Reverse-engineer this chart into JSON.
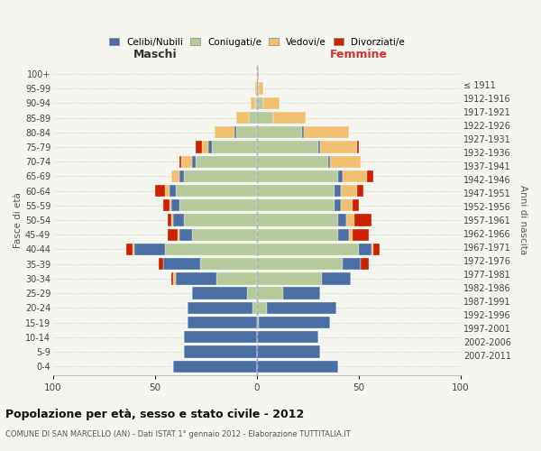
{
  "age_groups": [
    "0-4",
    "5-9",
    "10-14",
    "15-19",
    "20-24",
    "25-29",
    "30-34",
    "35-39",
    "40-44",
    "45-49",
    "50-54",
    "55-59",
    "60-64",
    "65-69",
    "70-74",
    "75-79",
    "80-84",
    "85-89",
    "90-94",
    "95-99",
    "100+"
  ],
  "birth_years": [
    "2007-2011",
    "2002-2006",
    "1997-2001",
    "1992-1996",
    "1987-1991",
    "1982-1986",
    "1977-1981",
    "1972-1976",
    "1967-1971",
    "1962-1966",
    "1957-1961",
    "1952-1956",
    "1947-1951",
    "1942-1946",
    "1937-1941",
    "1932-1936",
    "1927-1931",
    "1922-1926",
    "1917-1921",
    "1912-1916",
    "≤ 1911"
  ],
  "colors": {
    "celibi": "#4a6fa5",
    "coniugati": "#b5c99a",
    "vedovi": "#f0c070",
    "divorziati": "#cc2200",
    "bg": "#f5f5f0",
    "grid": "#cccccc"
  },
  "maschi": {
    "celibi": [
      41,
      36,
      36,
      34,
      32,
      27,
      20,
      18,
      15,
      6,
      5,
      4,
      3,
      2,
      2,
      2,
      1,
      0,
      0,
      0,
      0
    ],
    "coniugati": [
      0,
      0,
      0,
      0,
      2,
      5,
      20,
      28,
      45,
      32,
      36,
      38,
      40,
      36,
      30,
      22,
      10,
      4,
      1,
      0,
      0
    ],
    "vedovi": [
      0,
      0,
      0,
      0,
      0,
      0,
      1,
      0,
      1,
      1,
      1,
      1,
      2,
      4,
      5,
      3,
      10,
      6,
      2,
      1,
      0
    ],
    "divorziati": [
      0,
      0,
      0,
      0,
      0,
      0,
      1,
      2,
      3,
      5,
      2,
      3,
      5,
      0,
      1,
      3,
      0,
      0,
      0,
      0,
      0
    ]
  },
  "femmine": {
    "celibi": [
      40,
      31,
      30,
      35,
      34,
      18,
      14,
      9,
      6,
      5,
      4,
      3,
      3,
      2,
      1,
      1,
      1,
      0,
      0,
      0,
      0
    ],
    "coniugati": [
      0,
      0,
      0,
      1,
      5,
      13,
      32,
      42,
      50,
      40,
      40,
      38,
      38,
      40,
      35,
      30,
      22,
      8,
      3,
      1,
      0
    ],
    "vedovi": [
      0,
      0,
      0,
      0,
      0,
      0,
      0,
      0,
      1,
      2,
      4,
      6,
      8,
      12,
      15,
      18,
      22,
      16,
      8,
      2,
      1
    ],
    "divorziati": [
      0,
      0,
      0,
      0,
      0,
      0,
      0,
      4,
      3,
      8,
      8,
      3,
      3,
      3,
      0,
      1,
      0,
      0,
      0,
      0,
      0
    ]
  },
  "title": "Popolazione per età, sesso e stato civile - 2012",
  "subtitle": "COMUNE DI SAN MARCELLO (AN) - Dati ISTAT 1° gennaio 2012 - Elaborazione TUTTITALIA.IT",
  "ylabel_left": "Fasce di età",
  "ylabel_right": "Anni di nascita",
  "xlabel_left": "Maschi",
  "xlabel_right": "Femmine",
  "xlim": 100,
  "legend_labels": [
    "Celibi/Nubili",
    "Coniugati/e",
    "Vedovi/e",
    "Divorziati/e"
  ]
}
